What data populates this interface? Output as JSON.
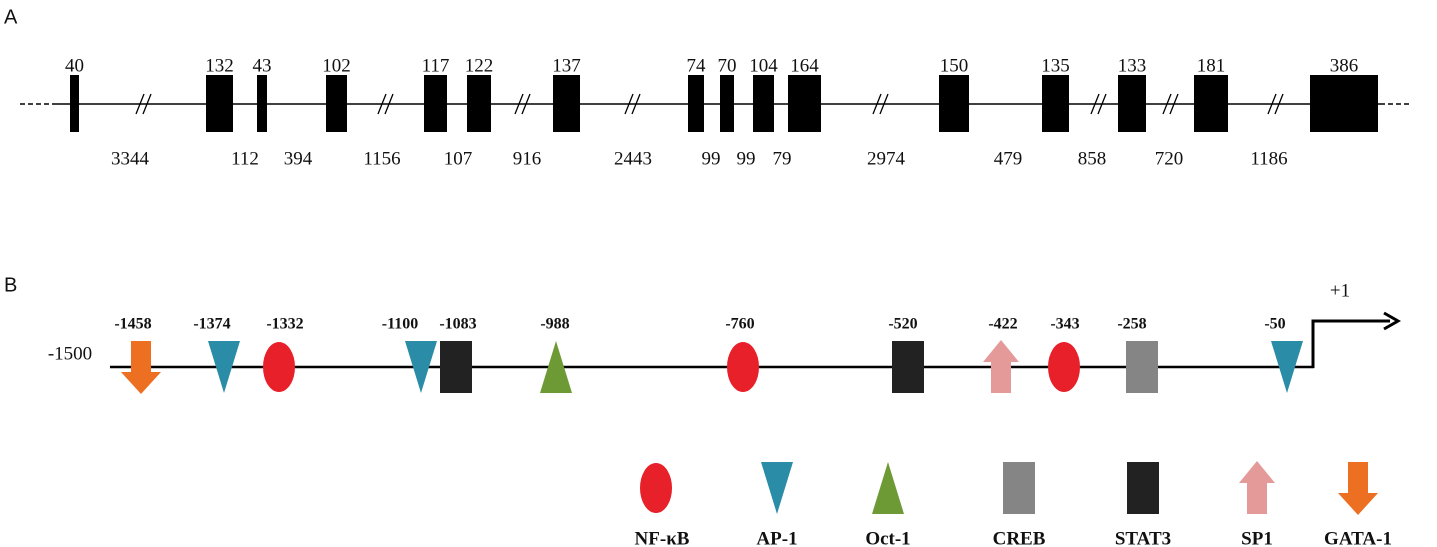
{
  "panel_a": {
    "label": "A",
    "exons": [
      40,
      132,
      43,
      102,
      117,
      122,
      137,
      74,
      70,
      104,
      164,
      150,
      135,
      133,
      181,
      386
    ],
    "introns": [
      3344,
      112,
      394,
      1156,
      107,
      916,
      2443,
      99,
      99,
      79,
      2974,
      479,
      858,
      720,
      1186
    ]
  },
  "panel_b": {
    "label": "B",
    "start": -1500,
    "tss": "+1",
    "sites": [
      {
        "position": -1458,
        "factor": "GATA-1"
      },
      {
        "position": -1374,
        "factor": "AP-1"
      },
      {
        "position": -1332,
        "factor": "NF-κB"
      },
      {
        "position": -1100,
        "factor": "AP-1"
      },
      {
        "position": -1083,
        "factor": "STAT3"
      },
      {
        "position": -988,
        "factor": "Oct-1"
      },
      {
        "position": -760,
        "factor": "NF-κB"
      },
      {
        "position": -520,
        "factor": "STAT3"
      },
      {
        "position": -422,
        "factor": "SP1"
      },
      {
        "position": -343,
        "factor": "NF-κB"
      },
      {
        "position": -258,
        "factor": "CREB"
      },
      {
        "position": -50,
        "factor": "AP-1"
      }
    ],
    "legend": [
      {
        "name": "NF-κB",
        "shape": "ellipse",
        "color": "#e8202a"
      },
      {
        "name": "AP-1",
        "shape": "triangle-down",
        "color": "#2a8ca6"
      },
      {
        "name": "Oct-1",
        "shape": "triangle-up",
        "color": "#6e9a35"
      },
      {
        "name": "CREB",
        "shape": "rect",
        "color": "#858585"
      },
      {
        "name": "STAT3",
        "shape": "rect",
        "color": "#222222"
      },
      {
        "name": "SP1",
        "shape": "arrow-up",
        "color": "#e59a9a"
      },
      {
        "name": "GATA-1",
        "shape": "arrow-down",
        "color": "#ec6f22"
      }
    ]
  }
}
